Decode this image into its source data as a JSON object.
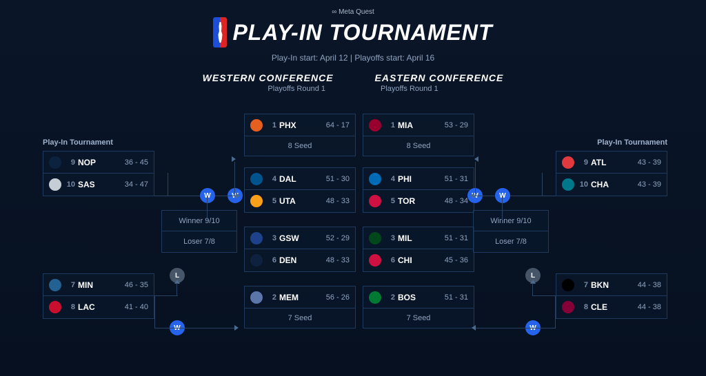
{
  "header": {
    "sponsor_prefix": "∞ Meta Quest",
    "title": "PLAY-IN TOURNAMENT",
    "dates": "Play-In start: April 12 | Playoffs start: April 16"
  },
  "conferences": {
    "west": "WESTERN CONFERENCE",
    "east": "EASTERN CONFERENCE",
    "round": "Playoffs Round 1"
  },
  "labels": {
    "playin": "Play-In Tournament",
    "winner_910": "Winner 9/10",
    "loser_78": "Loser 7/8",
    "seed7": "7 Seed",
    "seed8": "8 Seed",
    "W": "W",
    "L": "L"
  },
  "colors": {
    "NOP": "#0c2340",
    "SAS": "#c4ced4",
    "MIN": "#236192",
    "LAC": "#c8102e",
    "PHX": "#e56020",
    "DAL": "#00538c",
    "UTA": "#f9a01b",
    "GSW": "#1d428a",
    "DEN": "#0e2240",
    "MEM": "#5d76a9",
    "MIA": "#98002e",
    "PHI": "#006bb6",
    "TOR": "#ce1141",
    "MIL": "#00471b",
    "CHI": "#ce1141",
    "BOS": "#007a33",
    "ATL": "#e03a3e",
    "CHA": "#00788c",
    "BKN": "#000000",
    "CLE": "#860038"
  },
  "west": {
    "playin_top": [
      {
        "seed": "9",
        "abbr": "NOP",
        "rec": "36 - 45"
      },
      {
        "seed": "10",
        "abbr": "SAS",
        "rec": "34 - 47"
      }
    ],
    "playin_bot": [
      {
        "seed": "7",
        "abbr": "MIN",
        "rec": "46 - 35"
      },
      {
        "seed": "8",
        "abbr": "LAC",
        "rec": "41 - 40"
      }
    ],
    "round1": [
      [
        {
          "seed": "1",
          "abbr": "PHX",
          "rec": "64 - 17"
        }
      ],
      [
        {
          "seed": "4",
          "abbr": "DAL",
          "rec": "51 - 30"
        },
        {
          "seed": "5",
          "abbr": "UTA",
          "rec": "48 - 33"
        }
      ],
      [
        {
          "seed": "3",
          "abbr": "GSW",
          "rec": "52 - 29"
        },
        {
          "seed": "6",
          "abbr": "DEN",
          "rec": "48 - 33"
        }
      ],
      [
        {
          "seed": "2",
          "abbr": "MEM",
          "rec": "56 - 26"
        }
      ]
    ]
  },
  "east": {
    "playin_top": [
      {
        "seed": "9",
        "abbr": "ATL",
        "rec": "43 - 39"
      },
      {
        "seed": "10",
        "abbr": "CHA",
        "rec": "43 - 39"
      }
    ],
    "playin_bot": [
      {
        "seed": "7",
        "abbr": "BKN",
        "rec": "44 - 38"
      },
      {
        "seed": "8",
        "abbr": "CLE",
        "rec": "44 - 38"
      }
    ],
    "round1": [
      [
        {
          "seed": "1",
          "abbr": "MIA",
          "rec": "53 - 29"
        }
      ],
      [
        {
          "seed": "4",
          "abbr": "PHI",
          "rec": "51 - 31"
        },
        {
          "seed": "5",
          "abbr": "TOR",
          "rec": "48 - 34"
        }
      ],
      [
        {
          "seed": "3",
          "abbr": "MIL",
          "rec": "51 - 31"
        },
        {
          "seed": "6",
          "abbr": "CHI",
          "rec": "45 - 36"
        }
      ],
      [
        {
          "seed": "2",
          "abbr": "BOS",
          "rec": "51 - 31"
        }
      ]
    ]
  }
}
